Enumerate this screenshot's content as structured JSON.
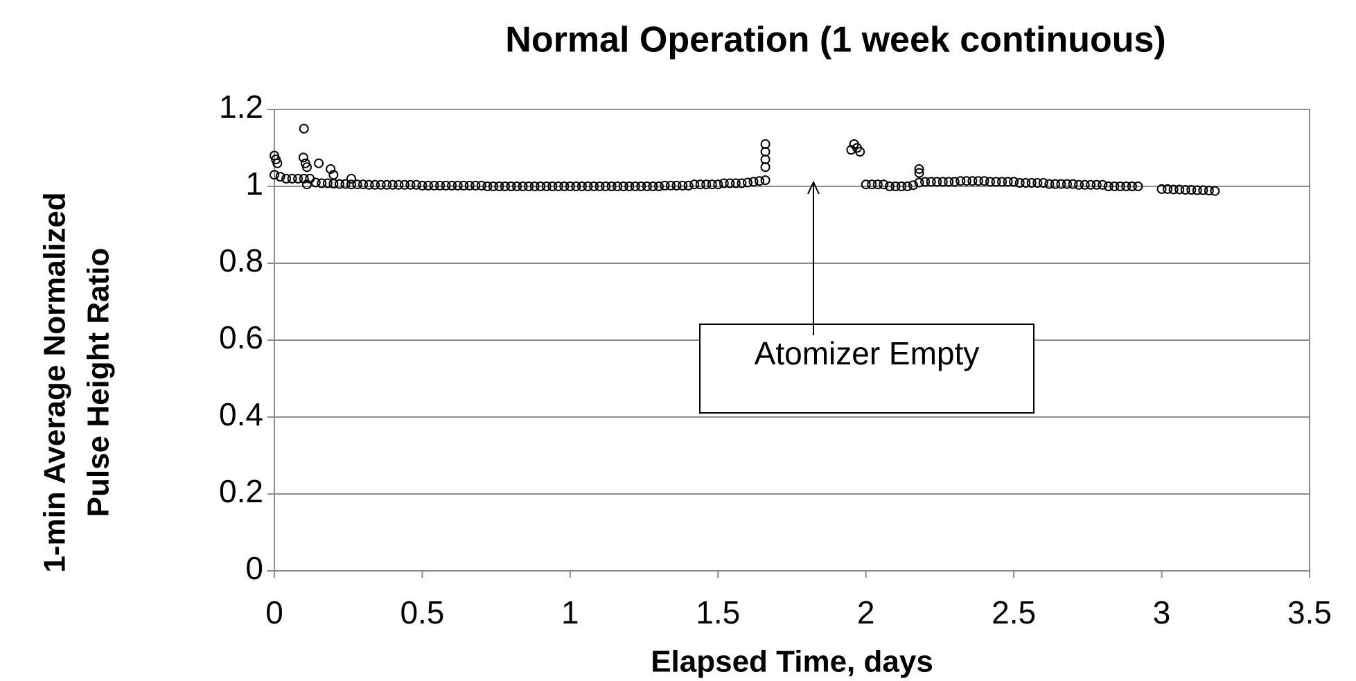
{
  "chart_data": {
    "type": "scatter",
    "title": "Normal Operation (1 week continuous)",
    "x_label": "Elapsed Time, days",
    "y_label": [
      "1-min Average Normalized",
      "Pulse Height Ratio"
    ],
    "annotation": "Atomizer Empty",
    "xlim": [
      0,
      3.5
    ],
    "xticks": [
      0,
      0.5,
      1,
      1.5,
      2,
      2.5,
      3,
      3.5
    ],
    "ylim": [
      0,
      1.2
    ],
    "yticks": [
      0,
      0.2,
      0.4,
      0.6,
      0.8,
      1,
      1.2
    ],
    "grid": true,
    "series": [
      {
        "name": "Pulse height ratio",
        "color": "#000000",
        "x": [
          0,
          0.02,
          0.04,
          0.06,
          0.08,
          0.1,
          0.12,
          0.14,
          0.16,
          0.18,
          0.2,
          0.22,
          0.24,
          0.26,
          0.28,
          0.3,
          0.32,
          0.34,
          0.36,
          0.38,
          0.4,
          0.42,
          0.44,
          0.46,
          0.48,
          0.5,
          0.52,
          0.54,
          0.56,
          0.58,
          0.6,
          0.62,
          0.64,
          0.66,
          0.68,
          0.7,
          0.72,
          0.74,
          0.76,
          0.78,
          0.8,
          0.82,
          0.84,
          0.86,
          0.88,
          0.9,
          0.92,
          0.94,
          0.96,
          0.98,
          1,
          1.02,
          1.04,
          1.06,
          1.08,
          1.1,
          1.12,
          1.14,
          1.16,
          1.18,
          1.2,
          1.22,
          1.24,
          1.26,
          1.28,
          1.3,
          1.32,
          1.34,
          1.36,
          1.38,
          1.4,
          1.42,
          1.44,
          1.46,
          1.48,
          1.5,
          1.52,
          1.54,
          1.56,
          1.58,
          1.6,
          1.62,
          1.64,
          1.66,
          1.95,
          1.96,
          1.97,
          1.98,
          2,
          2.02,
          2.04,
          2.06,
          2.08,
          2.1,
          2.12,
          2.14,
          2.16,
          2.18,
          2.2,
          2.22,
          2.24,
          2.26,
          2.28,
          2.3,
          2.32,
          2.34,
          2.36,
          2.38,
          2.4,
          2.42,
          2.44,
          2.46,
          2.48,
          2.5,
          2.52,
          2.54,
          2.56,
          2.58,
          2.6,
          2.62,
          2.64,
          2.66,
          2.68,
          2.7,
          2.72,
          2.74,
          2.76,
          2.78,
          2.8,
          2.82,
          2.84,
          2.86,
          2.88,
          2.9,
          2.92,
          3,
          3.02,
          3.04,
          3.06,
          3.08,
          3.1,
          3.12,
          3.14,
          3.16,
          3.18,
          0,
          0.005,
          0.01,
          0.1,
          0.098,
          0.105,
          0.11,
          0.15,
          0.19,
          0.2,
          0.26,
          0.11,
          1.66,
          1.66,
          1.66,
          1.66,
          2.18,
          2.18
        ],
        "values": [
          1.03,
          1.025,
          1.02,
          1.02,
          1.02,
          1.02,
          1.02,
          1.01,
          1.008,
          1.008,
          1.007,
          1.006,
          1.006,
          1.005,
          1.005,
          1.005,
          1.004,
          1.004,
          1.004,
          1.004,
          1.004,
          1.004,
          1.004,
          1.004,
          1.004,
          1.002,
          1.002,
          1.002,
          1.002,
          1.002,
          1.002,
          1.002,
          1.002,
          1.002,
          1.002,
          1.002,
          1,
          1,
          1,
          1,
          1,
          1,
          1,
          1,
          1,
          1,
          1,
          1,
          1,
          1,
          1,
          1,
          1,
          1,
          1,
          1,
          1,
          1,
          1,
          1,
          1,
          1,
          1,
          1,
          1,
          1,
          1.002,
          1.002,
          1.002,
          1.002,
          1.002,
          1.005,
          1.005,
          1.005,
          1.005,
          1.005,
          1.008,
          1.008,
          1.008,
          1.008,
          1.01,
          1.012,
          1.014,
          1.016,
          1.095,
          1.11,
          1.1,
          1.09,
          1.005,
          1.005,
          1.005,
          1.005,
          1,
          1,
          1,
          1,
          1.003,
          1.01,
          1.012,
          1.012,
          1.012,
          1.012,
          1.012,
          1.012,
          1.014,
          1.014,
          1.014,
          1.014,
          1.014,
          1.012,
          1.012,
          1.012,
          1.012,
          1.012,
          1.009,
          1.009,
          1.009,
          1.009,
          1.009,
          1.006,
          1.006,
          1.006,
          1.006,
          1.006,
          1.004,
          1.004,
          1.004,
          1.004,
          1.004,
          1,
          1,
          1,
          1,
          1,
          1,
          0.993,
          0.993,
          0.992,
          0.992,
          0.991,
          0.991,
          0.99,
          0.99,
          0.989,
          0.988,
          1.08,
          1.07,
          1.06,
          1.15,
          1.075,
          1.06,
          1.05,
          1.06,
          1.045,
          1.03,
          1.02,
          1.005,
          1.11,
          1.09,
          1.07,
          1.05,
          1.045,
          1.035
        ]
      }
    ]
  }
}
